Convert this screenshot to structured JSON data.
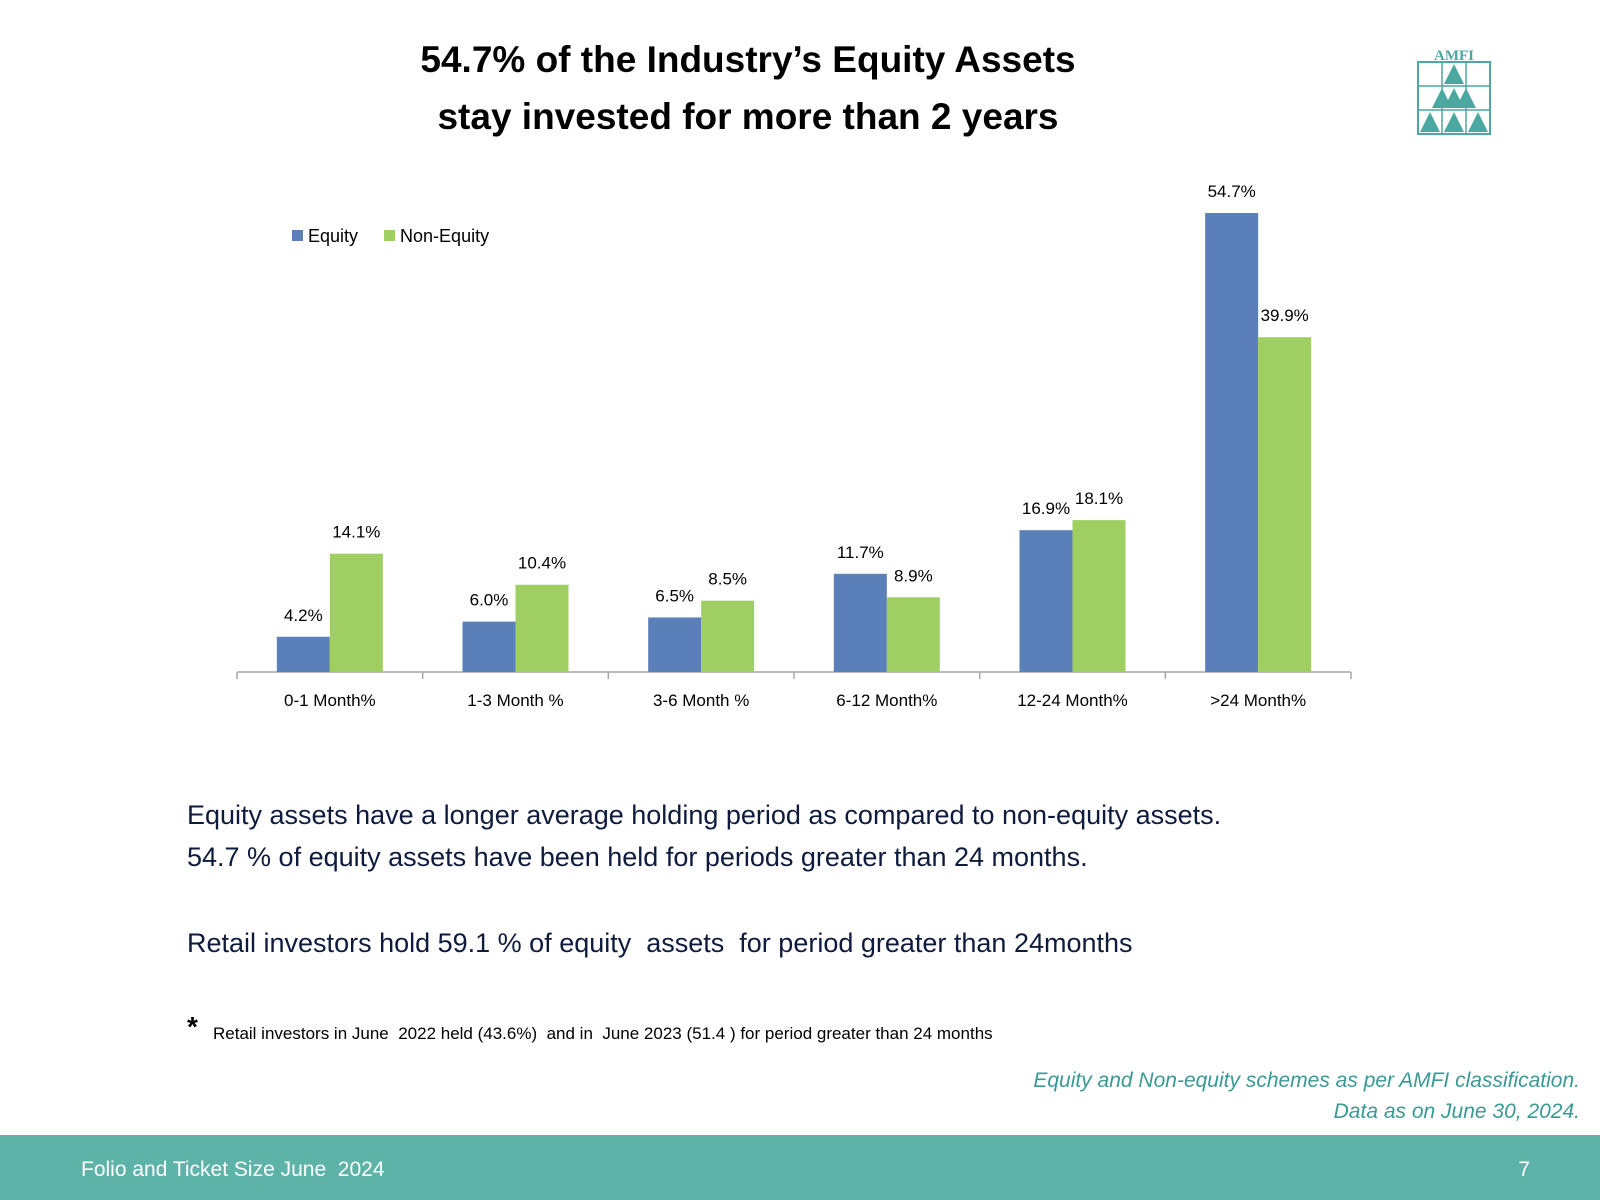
{
  "title": [
    "54.7% of the Industry’s Equity Assets",
    "stay invested for more than 2 years"
  ],
  "logo": "AMFI",
  "chart_data": {
    "type": "bar",
    "legend": "top-left",
    "categories": [
      "0-1 Month%",
      "1-3 Month %",
      "3-6 Month %",
      "6-12 Month%",
      "12-24 Month%",
      ">24 Month%"
    ],
    "series": [
      {
        "name": "Equity",
        "color": "#5b80b9",
        "values": [
          4.2,
          6.0,
          6.5,
          11.7,
          16.9,
          54.7
        ],
        "value_labels": [
          "4.2%",
          "6.0%",
          "6.5%",
          "11.7%",
          "16.9%",
          "54.7%"
        ]
      },
      {
        "name": "Non-Equity",
        "color": "#9fcf62",
        "values": [
          14.1,
          10.4,
          8.5,
          8.9,
          18.1,
          39.9
        ],
        "value_labels": [
          "14.1%",
          "10.4%",
          "8.5%",
          "8.9%",
          "18.1%",
          "39.9%"
        ]
      }
    ]
  },
  "body": [
    "Equity assets have a longer average holding period as compared to non-equity assets.",
    "54.7 % of equity assets have been held for periods greater than 24 months.",
    "Retail investors hold 59.1 % of equity  assets  for period greater than 24months"
  ],
  "footnote": {
    "marker": "*",
    "text": "Retail investors in June  2022 held (43.6%)  and in  June 2023 (51.4 ) for period greater than 24 months"
  },
  "notes": [
    "Equity and Non-equity schemes as per AMFI classification.",
    "Data as on June 30, 2024."
  ],
  "footer": {
    "text": "Folio and Ticket Size June  2024",
    "page": 7
  }
}
